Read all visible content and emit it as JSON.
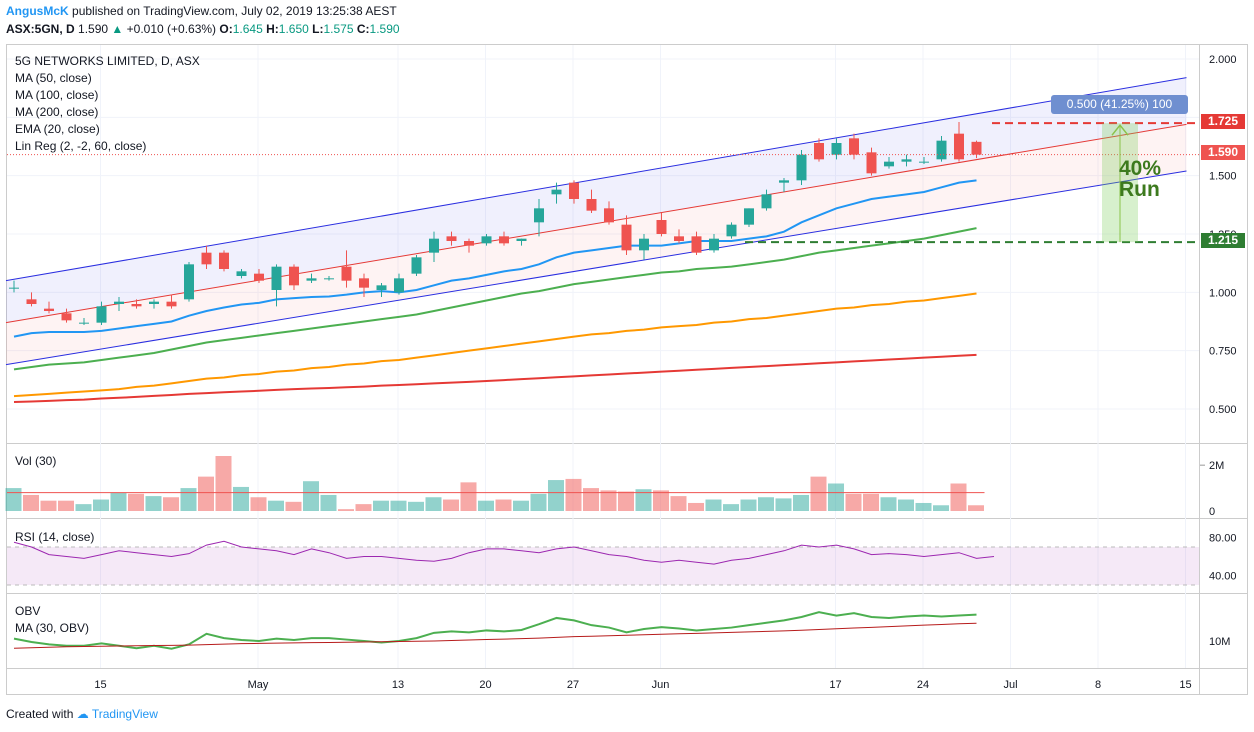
{
  "header": {
    "author": "AngusMcK",
    "published": "published on TradingView.com, July 02, 2019 13:25:38 AEST",
    "symbol": "ASX:5GN, D",
    "last": "1.590",
    "change": "+0.010 (+0.63%)",
    "o_label": "O:",
    "o": "1.645",
    "h_label": "H:",
    "h": "1.650",
    "l_label": "L:",
    "l": "1.575",
    "c_label": "C:",
    "c": "1.590"
  },
  "legend": {
    "title": "5G NETWORKS LIMITED, D, ASX",
    "ma50": "MA (50, close)",
    "ma100": "MA (100, close)",
    "ma200": "MA (200, close)",
    "ema20": "EMA (20, close)",
    "linreg": "Lin Reg (2, -2, 60, close)"
  },
  "measure": {
    "label": "0.500 (41.25%) 100",
    "annotation_line1": "40%",
    "annotation_line2": "Run"
  },
  "price_labels": {
    "top": "1.725",
    "last": "1.590",
    "bottom": "1.215"
  },
  "panes": {
    "vol_title": "Vol (30)",
    "rsi_title": "RSI (14, close)",
    "obv_title": "OBV",
    "obv_ma_title": "MA (30, OBV)"
  },
  "colors": {
    "up": "#26a69a",
    "down": "#ef5350",
    "ema20": "#2196f3",
    "ma50": "#4caf50",
    "ma100": "#ff9800",
    "ma200": "#e53935",
    "channel": "#2a2ee0",
    "rsi": "#9c27b0"
  },
  "footer": {
    "created": "Created with",
    "brand": "TradingView"
  },
  "chart_data": [
    {
      "type": "candlestick",
      "title": "5G NETWORKS LIMITED, D, ASX",
      "ylim": [
        0.4,
        2.05
      ],
      "y_ticks": [
        "2.000",
        "1.750",
        "1.500",
        "1.250",
        "1.000",
        "0.750",
        "0.500"
      ],
      "x_ticks": [
        "15",
        "May",
        "13",
        "20",
        "27",
        "Jun",
        "17",
        "24",
        "Jul",
        "8",
        "15"
      ],
      "x_tick_index": [
        5,
        14,
        22,
        27,
        32,
        37,
        47,
        52,
        57,
        62,
        67
      ],
      "ohlc": [
        [
          1.02,
          1.05,
          1.0,
          1.02
        ],
        [
          0.97,
          1.0,
          0.94,
          0.95
        ],
        [
          0.93,
          0.96,
          0.91,
          0.92
        ],
        [
          0.91,
          0.93,
          0.87,
          0.88
        ],
        [
          0.87,
          0.89,
          0.86,
          0.87
        ],
        [
          0.87,
          0.96,
          0.86,
          0.94
        ],
        [
          0.95,
          0.98,
          0.92,
          0.96
        ],
        [
          0.95,
          0.97,
          0.93,
          0.94
        ],
        [
          0.95,
          0.97,
          0.93,
          0.96
        ],
        [
          0.96,
          0.99,
          0.93,
          0.94
        ],
        [
          0.97,
          1.13,
          0.96,
          1.12
        ],
        [
          1.17,
          1.2,
          1.1,
          1.12
        ],
        [
          1.17,
          1.18,
          1.09,
          1.1
        ],
        [
          1.07,
          1.1,
          1.06,
          1.09
        ],
        [
          1.08,
          1.1,
          1.04,
          1.05
        ],
        [
          1.01,
          1.12,
          0.94,
          1.11
        ],
        [
          1.11,
          1.12,
          1.01,
          1.03
        ],
        [
          1.05,
          1.08,
          1.04,
          1.06
        ],
        [
          1.06,
          1.07,
          1.05,
          1.06
        ],
        [
          1.11,
          1.18,
          1.02,
          1.05
        ],
        [
          1.06,
          1.08,
          0.98,
          1.02
        ],
        [
          1.01,
          1.04,
          0.98,
          1.03
        ],
        [
          1.0,
          1.08,
          0.99,
          1.06
        ],
        [
          1.08,
          1.16,
          1.07,
          1.15
        ],
        [
          1.17,
          1.26,
          1.13,
          1.23
        ],
        [
          1.24,
          1.26,
          1.2,
          1.22
        ],
        [
          1.22,
          1.23,
          1.17,
          1.2
        ],
        [
          1.21,
          1.25,
          1.2,
          1.24
        ],
        [
          1.24,
          1.26,
          1.2,
          1.21
        ],
        [
          1.22,
          1.23,
          1.2,
          1.23
        ],
        [
          1.3,
          1.4,
          1.24,
          1.36
        ],
        [
          1.42,
          1.47,
          1.38,
          1.44
        ],
        [
          1.47,
          1.48,
          1.38,
          1.4
        ],
        [
          1.4,
          1.44,
          1.34,
          1.35
        ],
        [
          1.36,
          1.39,
          1.29,
          1.3
        ],
        [
          1.29,
          1.33,
          1.16,
          1.18
        ],
        [
          1.18,
          1.25,
          1.14,
          1.23
        ],
        [
          1.31,
          1.34,
          1.24,
          1.25
        ],
        [
          1.24,
          1.27,
          1.21,
          1.22
        ],
        [
          1.24,
          1.26,
          1.16,
          1.17
        ],
        [
          1.18,
          1.25,
          1.17,
          1.23
        ],
        [
          1.24,
          1.3,
          1.23,
          1.29
        ],
        [
          1.29,
          1.36,
          1.28,
          1.36
        ],
        [
          1.36,
          1.44,
          1.35,
          1.42
        ],
        [
          1.47,
          1.49,
          1.43,
          1.48
        ],
        [
          1.48,
          1.61,
          1.46,
          1.59
        ],
        [
          1.64,
          1.66,
          1.56,
          1.57
        ],
        [
          1.59,
          1.66,
          1.57,
          1.64
        ],
        [
          1.66,
          1.68,
          1.57,
          1.59
        ],
        [
          1.6,
          1.62,
          1.5,
          1.51
        ],
        [
          1.54,
          1.58,
          1.53,
          1.56
        ],
        [
          1.56,
          1.59,
          1.54,
          1.57
        ],
        [
          1.56,
          1.58,
          1.55,
          1.56
        ],
        [
          1.57,
          1.67,
          1.56,
          1.65
        ],
        [
          1.68,
          1.73,
          1.56,
          1.57
        ],
        [
          1.645,
          1.65,
          1.575,
          1.59
        ]
      ],
      "series": [
        {
          "name": "EMA (20, close)",
          "start_index": 0,
          "values": [
            0.81,
            0.825,
            0.83,
            0.83,
            0.83,
            0.835,
            0.845,
            0.855,
            0.865,
            0.875,
            0.9,
            0.92,
            0.935,
            0.948,
            0.955,
            0.97,
            0.975,
            0.98,
            0.982,
            0.99,
            1.0,
            1.005,
            1.0,
            1.01,
            1.03,
            1.05,
            1.06,
            1.075,
            1.09,
            1.1,
            1.12,
            1.15,
            1.17,
            1.18,
            1.19,
            1.2,
            1.2,
            1.2,
            1.21,
            1.22,
            1.22,
            1.22,
            1.23,
            1.24,
            1.26,
            1.3,
            1.33,
            1.36,
            1.38,
            1.4,
            1.41,
            1.42,
            1.43,
            1.45,
            1.47,
            1.48
          ]
        },
        {
          "name": "MA (50, close)",
          "start_index": 0,
          "values": [
            0.67,
            0.68,
            0.69,
            0.695,
            0.7,
            0.71,
            0.72,
            0.73,
            0.74,
            0.755,
            0.77,
            0.785,
            0.795,
            0.805,
            0.815,
            0.825,
            0.835,
            0.845,
            0.855,
            0.865,
            0.875,
            0.885,
            0.895,
            0.905,
            0.92,
            0.935,
            0.95,
            0.965,
            0.98,
            0.995,
            1.005,
            1.02,
            1.035,
            1.045,
            1.055,
            1.065,
            1.075,
            1.085,
            1.09,
            1.1,
            1.105,
            1.11,
            1.12,
            1.13,
            1.14,
            1.155,
            1.17,
            1.18,
            1.19,
            1.2,
            1.21,
            1.22,
            1.23,
            1.245,
            1.26,
            1.275
          ]
        },
        {
          "name": "MA (100, close)",
          "start_index": 0,
          "values": [
            0.555,
            0.56,
            0.565,
            0.57,
            0.575,
            0.58,
            0.585,
            0.595,
            0.6,
            0.61,
            0.62,
            0.63,
            0.635,
            0.645,
            0.65,
            0.66,
            0.665,
            0.675,
            0.68,
            0.69,
            0.695,
            0.705,
            0.71,
            0.72,
            0.73,
            0.74,
            0.75,
            0.76,
            0.77,
            0.78,
            0.79,
            0.8,
            0.81,
            0.82,
            0.825,
            0.835,
            0.84,
            0.85,
            0.855,
            0.86,
            0.87,
            0.875,
            0.885,
            0.89,
            0.9,
            0.91,
            0.92,
            0.93,
            0.935,
            0.945,
            0.95,
            0.96,
            0.965,
            0.975,
            0.985,
            0.995
          ]
        },
        {
          "name": "MA (200, close)",
          "start_index": 0,
          "values": [
            0.53,
            0.532,
            0.535,
            0.538,
            0.54,
            0.545,
            0.548,
            0.552,
            0.556,
            0.56,
            0.565,
            0.568,
            0.572,
            0.575,
            0.578,
            0.582,
            0.585,
            0.588,
            0.59,
            0.593,
            0.596,
            0.6,
            0.603,
            0.606,
            0.61,
            0.613,
            0.616,
            0.62,
            0.624,
            0.628,
            0.632,
            0.636,
            0.64,
            0.644,
            0.648,
            0.652,
            0.656,
            0.66,
            0.664,
            0.668,
            0.672,
            0.676,
            0.68,
            0.684,
            0.688,
            0.692,
            0.696,
            0.7,
            0.704,
            0.708,
            0.712,
            0.716,
            0.72,
            0.724,
            0.728,
            0.732
          ]
        }
      ],
      "linreg": {
        "mid_start": 0.87,
        "mid_end": 1.72,
        "upper_start": 1.05,
        "upper_end": 1.92,
        "lower_start": 0.69,
        "lower_end": 1.52,
        "end_index": 67
      },
      "levels": {
        "top": 1.725,
        "last": 1.59,
        "bottom": 1.215
      }
    },
    {
      "type": "bar",
      "title": "Vol (30)",
      "y_ticks": [
        "2M",
        "0"
      ],
      "ylim": [
        0,
        2400000
      ],
      "values": [
        1000000,
        700000,
        450000,
        450000,
        300000,
        500000,
        800000,
        750000,
        650000,
        600000,
        1000000,
        1500000,
        2400000,
        1050000,
        600000,
        450000,
        400000,
        1300000,
        700000,
        80000,
        300000,
        450000,
        450000,
        400000,
        600000,
        500000,
        1250000,
        450000,
        500000,
        450000,
        750000,
        1350000,
        1400000,
        1000000,
        900000,
        850000,
        950000,
        900000,
        650000,
        350000,
        500000,
        300000,
        500000,
        600000,
        550000,
        700000,
        1500000,
        1200000,
        750000,
        750000,
        600000,
        500000,
        350000,
        250000,
        1200000,
        250000
      ],
      "ma_value": 800000
    },
    {
      "type": "line",
      "title": "RSI (14, close)",
      "y_ticks": [
        "80.00",
        "40.00"
      ],
      "ylim": [
        25,
        90
      ],
      "bands": [
        70,
        30
      ],
      "values": [
        75,
        70,
        62,
        60,
        58,
        62,
        66,
        64,
        62,
        60,
        63,
        72,
        76,
        70,
        68,
        66,
        62,
        68,
        64,
        58,
        60,
        60,
        58,
        56,
        55,
        58,
        64,
        68,
        68,
        66,
        64,
        68,
        70,
        66,
        62,
        60,
        56,
        54,
        56,
        54,
        52,
        56,
        58,
        62,
        66,
        72,
        70,
        72,
        68,
        62,
        63,
        62,
        60,
        62,
        64,
        58,
        60
      ]
    },
    {
      "type": "line",
      "title": "OBV",
      "y_ticks": [
        "10M"
      ],
      "ylim": [
        5000000,
        20000000
      ],
      "series": [
        {
          "name": "OBV",
          "values": [
            10500000,
            9800000,
            9300000,
            9000000,
            9000000,
            9500000,
            9000000,
            8500000,
            9000000,
            8400000,
            9300000,
            11500000,
            10600000,
            10200000,
            10000000,
            10500000,
            10200000,
            10600000,
            10600000,
            10300000,
            10000000,
            9700000,
            10000000,
            10600000,
            11700000,
            12000000,
            11800000,
            12200000,
            12000000,
            12300000,
            13500000,
            14800000,
            14300000,
            13300000,
            12800000,
            11800000,
            12500000,
            12900000,
            12600000,
            12200000,
            12500000,
            12800000,
            13300000,
            13800000,
            14300000,
            15000000,
            16000000,
            15300000,
            15800000,
            15000000,
            14800000,
            15100000,
            15300000,
            15100000,
            15300000,
            15500000
          ]
        },
        {
          "name": "MA (30, OBV)",
          "values": [
            8500000,
            8600000,
            8700000,
            8800000,
            8850000,
            8900000,
            8950000,
            9000000,
            9050000,
            9100000,
            9150000,
            9250000,
            9350000,
            9450000,
            9500000,
            9550000,
            9600000,
            9650000,
            9700000,
            9750000,
            9800000,
            9850000,
            9900000,
            9950000,
            10000000,
            10100000,
            10200000,
            10300000,
            10400000,
            10500000,
            10600000,
            10750000,
            10900000,
            11000000,
            11100000,
            11200000,
            11300000,
            11400000,
            11500000,
            11600000,
            11700000,
            11800000,
            11900000,
            12000000,
            12100000,
            12250000,
            12400000,
            12550000,
            12700000,
            12850000,
            13000000,
            13150000,
            13300000,
            13450000,
            13600000,
            13700000
          ]
        }
      ]
    }
  ]
}
